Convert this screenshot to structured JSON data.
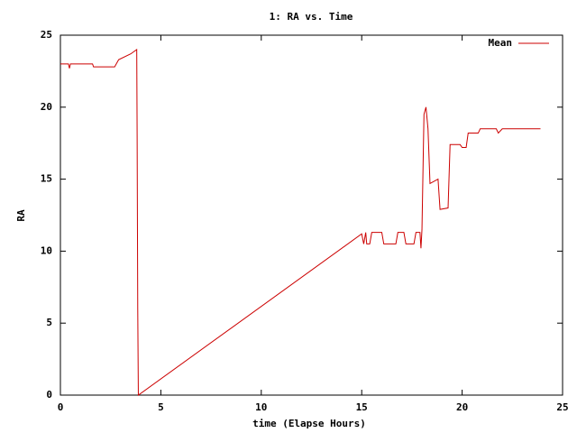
{
  "chart_data": {
    "type": "line",
    "title": "1: RA vs. Time",
    "x_label": "time (Elapse Hours)",
    "y_label": "RA",
    "x": [
      0,
      0.4,
      0.45,
      0.5,
      1.6,
      1.65,
      2.7,
      2.9,
      3.5,
      3.8,
      3.82,
      3.85,
      3.88,
      15.0,
      15.1,
      15.2,
      15.25,
      15.4,
      15.5,
      16.0,
      16.1,
      16.7,
      16.8,
      17.1,
      17.2,
      17.6,
      17.7,
      17.9,
      17.95,
      18.0,
      18.1,
      18.2,
      18.3,
      18.4,
      18.8,
      18.9,
      19.3,
      19.4,
      19.9,
      20.0,
      20.2,
      20.3,
      20.8,
      20.9,
      21.7,
      21.8,
      22.0,
      23.9
    ],
    "series": [
      {
        "name": "Mean",
        "color": "#cc0000",
        "values": [
          23,
          23,
          22.7,
          23,
          23,
          22.8,
          22.8,
          23.3,
          23.7,
          24,
          18,
          6,
          0,
          11.2,
          10.5,
          11.3,
          10.5,
          10.5,
          11.3,
          11.3,
          10.5,
          10.5,
          11.3,
          11.3,
          10.5,
          10.5,
          11.3,
          11.3,
          10.2,
          11.5,
          19.5,
          20,
          18.5,
          14.7,
          15,
          12.9,
          13,
          17.4,
          17.4,
          17.2,
          17.2,
          18.2,
          18.2,
          18.5,
          18.5,
          18.2,
          18.5,
          18.5
        ]
      }
    ],
    "xlim": [
      0,
      25
    ],
    "xticks": [
      0,
      5,
      10,
      15,
      20,
      25
    ],
    "ylim": [
      0,
      25
    ],
    "yticks": [
      0,
      5,
      10,
      15,
      20,
      25
    ],
    "legend": "top-right"
  }
}
